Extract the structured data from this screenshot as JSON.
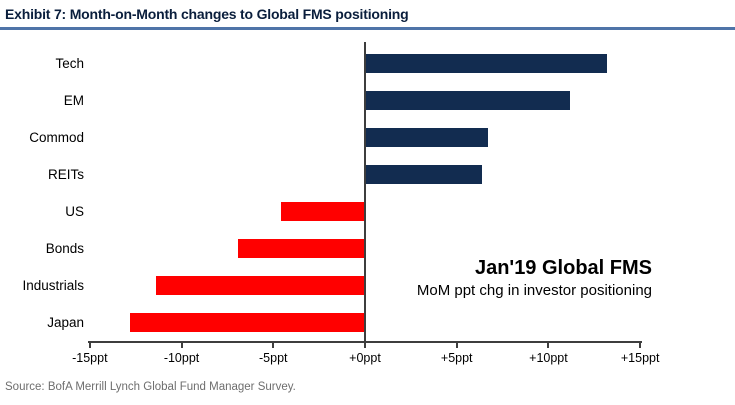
{
  "header": {
    "title": "Exhibit 7: Month-on-Month changes to Global FMS positioning"
  },
  "chart_data": {
    "type": "bar",
    "orientation": "horizontal",
    "title": "Exhibit 7: Month-on-Month changes to Global FMS positioning",
    "categories": [
      "Tech",
      "EM",
      "Commod",
      "REITs",
      "US",
      "Bonds",
      "Industrials",
      "Japan"
    ],
    "values": [
      13.2,
      11.2,
      6.7,
      6.4,
      -4.6,
      -6.9,
      -11.4,
      -12.8
    ],
    "unit": "ppt",
    "xlabel": "",
    "ylabel": "",
    "xlim": [
      -15.1,
      15.1
    ],
    "x_ticks": [
      {
        "value": -15,
        "label": "-15ppt"
      },
      {
        "value": -10,
        "label": "-10ppt"
      },
      {
        "value": -5,
        "label": "-5ppt"
      },
      {
        "value": 0,
        "label": "+0ppt"
      },
      {
        "value": 5,
        "label": "+5ppt"
      },
      {
        "value": 10,
        "label": "+10ppt"
      },
      {
        "value": 15,
        "label": "+15ppt"
      }
    ],
    "grid": false,
    "legend": false,
    "positive_color": "#122C50",
    "negative_color": "#FF0000",
    "annotation": {
      "line1": "Jan'19 Global FMS",
      "line2": "MoM ppt chg in investor positioning"
    }
  },
  "footer": {
    "source": "Source: BofA Merrill Lynch Global Fund Manager Survey."
  },
  "colors": {
    "bar_positive": "#122C50",
    "bar_negative": "#FF0000",
    "title_text": "#0A1E3C",
    "title_rule": "#4F74A8",
    "axis": "#3D3D3D",
    "source_text": "#6E6E6E"
  }
}
